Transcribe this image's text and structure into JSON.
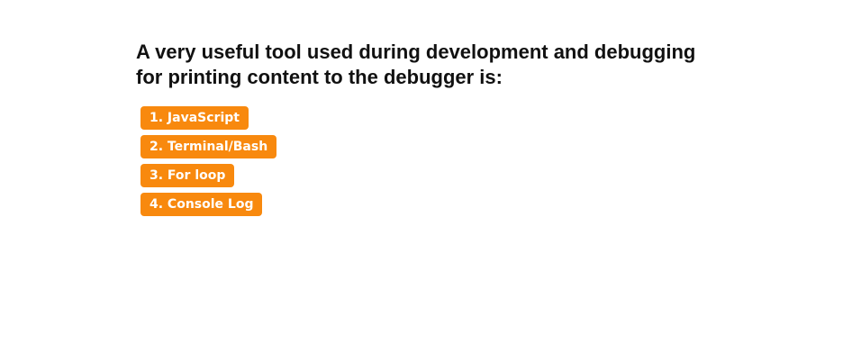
{
  "question": {
    "text": "A very useful tool used during development and debugging for printing content to the debugger is:"
  },
  "answers": [
    {
      "label": "1. JavaScript"
    },
    {
      "label": "2. Terminal/Bash"
    },
    {
      "label": "3. For loop"
    },
    {
      "label": "4. Console Log"
    }
  ],
  "colors": {
    "answer_background": "#f8890e",
    "answer_text": "#ffffff",
    "question_text": "#111111"
  }
}
